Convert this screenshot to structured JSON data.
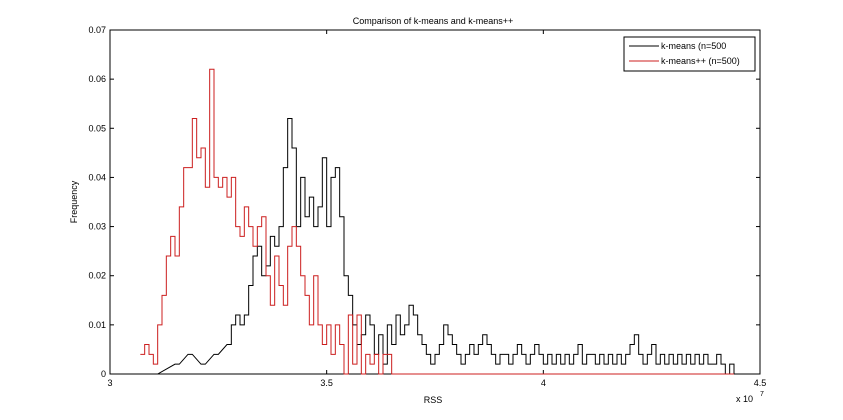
{
  "chart_data": {
    "type": "line",
    "title": "Comparison of k-means and k-means++",
    "xlabel": "RSS",
    "ylabel": "Frequency",
    "x_multiplier_label": "x 10",
    "x_multiplier_exponent": "7",
    "xlim": [
      3.0,
      4.5
    ],
    "ylim": [
      0,
      0.07
    ],
    "x_ticks": [
      3.0,
      3.5,
      4.0,
      4.5
    ],
    "x_tick_labels": [
      "3",
      "3.5",
      "4",
      "4.5"
    ],
    "y_ticks": [
      0,
      0.01,
      0.02,
      0.03,
      0.04,
      0.05,
      0.06,
      0.07
    ],
    "y_tick_labels": [
      "0",
      "0.01",
      "0.02",
      "0.03",
      "0.04",
      "0.05",
      "0.06",
      "0.07"
    ],
    "grid": false,
    "legend_position": "top-right",
    "series": [
      {
        "name": "k-means (n=500",
        "color": "#000000",
        "style": "stairs",
        "x": [
          3.1,
          3.15,
          3.18,
          3.21,
          3.24,
          3.27,
          3.28,
          3.29,
          3.3,
          3.31,
          3.32,
          3.33,
          3.34,
          3.35,
          3.36,
          3.37,
          3.38,
          3.39,
          3.4,
          3.41,
          3.42,
          3.43,
          3.44,
          3.45,
          3.46,
          3.47,
          3.48,
          3.49,
          3.5,
          3.51,
          3.52,
          3.53,
          3.54,
          3.55,
          3.56,
          3.57,
          3.58,
          3.59,
          3.6,
          3.61,
          3.62,
          3.63,
          3.64,
          3.65,
          3.66,
          3.67,
          3.68,
          3.69,
          3.7,
          3.71,
          3.72,
          3.73,
          3.74,
          3.75,
          3.76,
          3.77,
          3.78,
          3.79,
          3.8,
          3.81,
          3.82,
          3.83,
          3.84,
          3.85,
          3.86,
          3.87,
          3.88,
          3.89,
          3.9,
          3.91,
          3.92,
          3.93,
          3.94,
          3.95,
          3.96,
          3.97,
          3.98,
          3.99,
          4.0,
          4.01,
          4.02,
          4.03,
          4.04,
          4.05,
          4.06,
          4.07,
          4.08,
          4.09,
          4.1,
          4.11,
          4.12,
          4.13,
          4.14,
          4.15,
          4.16,
          4.17,
          4.18,
          4.19,
          4.2,
          4.21,
          4.22,
          4.23,
          4.24,
          4.25,
          4.26,
          4.27,
          4.28,
          4.29,
          4.3,
          4.31,
          4.32,
          4.33,
          4.34,
          4.35,
          4.36,
          4.37,
          4.38,
          4.39,
          4.4,
          4.41,
          4.42,
          4.43,
          4.44
        ],
        "y": [
          0,
          0.002,
          0.004,
          0.002,
          0.004,
          0.006,
          0.01,
          0.012,
          0.01,
          0.012,
          0.018,
          0.024,
          0.026,
          0.02,
          0.022,
          0.028,
          0.026,
          0.03,
          0.042,
          0.052,
          0.046,
          0.03,
          0.04,
          0.032,
          0.036,
          0.03,
          0.034,
          0.044,
          0.03,
          0.04,
          0.042,
          0.032,
          0.02,
          0.016,
          0.01,
          0.006,
          0.008,
          0.012,
          0.01,
          0.004,
          0.008,
          0.002,
          0.01,
          0.006,
          0.012,
          0.008,
          0.01,
          0.014,
          0.012,
          0.008,
          0.006,
          0.004,
          0.002,
          0.004,
          0.006,
          0.01,
          0.008,
          0.006,
          0.004,
          0.002,
          0.004,
          0.006,
          0.004,
          0.006,
          0.008,
          0.006,
          0.004,
          0.002,
          0.004,
          0.004,
          0.002,
          0.004,
          0.006,
          0.004,
          0.002,
          0.004,
          0.006,
          0.004,
          0.002,
          0.004,
          0.002,
          0.004,
          0.002,
          0.004,
          0.002,
          0.004,
          0.006,
          0.002,
          0.004,
          0.004,
          0.002,
          0.004,
          0.002,
          0.004,
          0.002,
          0.004,
          0.002,
          0.004,
          0.006,
          0.008,
          0.004,
          0.002,
          0.004,
          0.006,
          0.002,
          0.004,
          0.002,
          0.004,
          0.002,
          0.004,
          0.002,
          0.004,
          0.002,
          0.004,
          0.002,
          0.004,
          0.002,
          0.002,
          0.004,
          0.002,
          0,
          0.002,
          0
        ]
      },
      {
        "name": "k-means++ (n=500)",
        "color": "#cc1f1f",
        "style": "stairs",
        "x": [
          3.07,
          3.08,
          3.09,
          3.1,
          3.11,
          3.12,
          3.13,
          3.14,
          3.15,
          3.16,
          3.17,
          3.18,
          3.19,
          3.2,
          3.21,
          3.22,
          3.23,
          3.24,
          3.25,
          3.26,
          3.27,
          3.28,
          3.29,
          3.3,
          3.31,
          3.32,
          3.33,
          3.34,
          3.35,
          3.36,
          3.37,
          3.38,
          3.39,
          3.4,
          3.41,
          3.42,
          3.43,
          3.44,
          3.45,
          3.46,
          3.47,
          3.48,
          3.49,
          3.5,
          3.51,
          3.52,
          3.53,
          3.54,
          3.55,
          3.56,
          3.57,
          3.58,
          3.59,
          3.6,
          3.61,
          3.62,
          3.63,
          3.64,
          3.65,
          3.66,
          3.67,
          3.68,
          3.69,
          3.7,
          3.71,
          3.72,
          3.73,
          3.74,
          3.75,
          3.76,
          3.77,
          3.78,
          3.79,
          3.8,
          3.81,
          3.82,
          3.83,
          3.84,
          3.85,
          3.86,
          3.87,
          3.88,
          3.89,
          3.9,
          3.91,
          3.92,
          3.93,
          3.94,
          3.95,
          3.96,
          3.97,
          3.98,
          3.99,
          4.0,
          4.01,
          4.02,
          4.03,
          4.04,
          4.05,
          4.06,
          4.07,
          4.08,
          4.09,
          4.1,
          4.11,
          4.12,
          4.13,
          4.14,
          4.15,
          4.16,
          4.17,
          4.18,
          4.19,
          4.2,
          4.21,
          4.22,
          4.23,
          4.24,
          4.25,
          4.26,
          4.27,
          4.28,
          4.29,
          4.3,
          4.31,
          4.32,
          4.33,
          4.34,
          4.35,
          4.36,
          4.37,
          4.38,
          4.39,
          4.4,
          4.41,
          4.42,
          4.43
        ],
        "y": [
          0.004,
          0.006,
          0.004,
          0.002,
          0.01,
          0.016,
          0.024,
          0.028,
          0.024,
          0.034,
          0.042,
          0.042,
          0.052,
          0.044,
          0.046,
          0.038,
          0.062,
          0.04,
          0.038,
          0.04,
          0.036,
          0.04,
          0.03,
          0.028,
          0.034,
          0.03,
          0.026,
          0.03,
          0.032,
          0.02,
          0.014,
          0.024,
          0.018,
          0.014,
          0.026,
          0.03,
          0.026,
          0.02,
          0.016,
          0.01,
          0.02,
          0.01,
          0.006,
          0.01,
          0.004,
          0.01,
          0.006,
          0,
          0.012,
          0.002,
          0.012,
          0,
          0.004,
          0.002,
          0.004,
          0,
          0.004,
          0.004,
          0,
          0,
          0,
          0,
          0,
          0,
          0,
          0,
          0,
          0,
          0,
          0,
          0,
          0,
          0,
          0,
          0,
          0,
          0,
          0,
          0,
          0,
          0,
          0,
          0,
          0,
          0,
          0,
          0,
          0,
          0,
          0,
          0,
          0,
          0,
          0,
          0,
          0,
          0,
          0,
          0,
          0,
          0,
          0,
          0,
          0,
          0,
          0,
          0,
          0,
          0,
          0,
          0,
          0,
          0,
          0,
          0,
          0,
          0,
          0,
          0,
          0,
          0,
          0,
          0,
          0,
          0,
          0,
          0,
          0,
          0,
          0,
          0,
          0,
          0,
          0,
          0,
          0,
          0
        ]
      }
    ]
  }
}
